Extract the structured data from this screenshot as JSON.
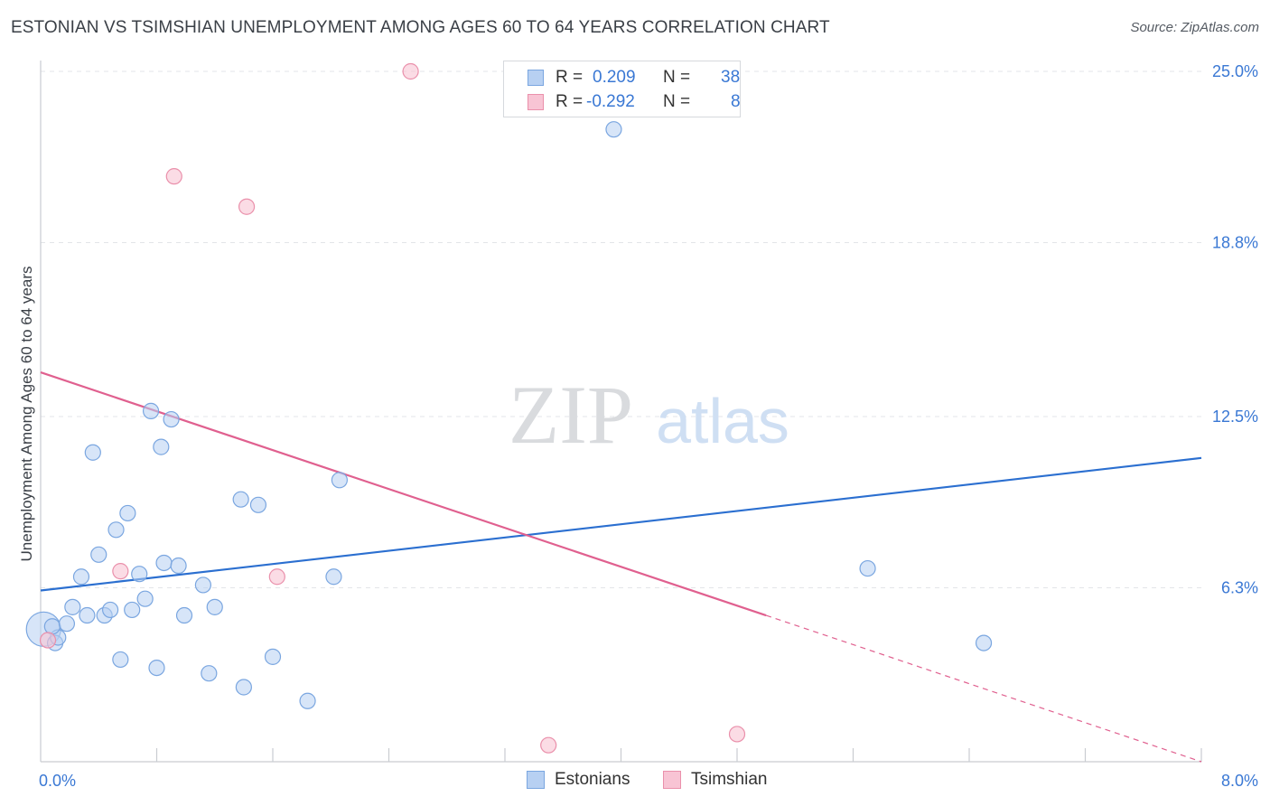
{
  "title": "ESTONIAN VS TSIMSHIAN UNEMPLOYMENT AMONG AGES 60 TO 64 YEARS CORRELATION CHART",
  "source": "Source: ZipAtlas.com",
  "watermark": {
    "zip": "ZIP",
    "atlas": "atlas"
  },
  "colors": {
    "blue_fill": "#b7d0f2",
    "blue_stroke": "#7aa6e0",
    "blue_line": "#2b6fd0",
    "pink_fill": "#f8c4d4",
    "pink_stroke": "#ea90ab",
    "pink_line": "#e0608f",
    "tick_label": "#3a78d4",
    "grid": "#e3e5e8",
    "axis": "#c9ccd1"
  },
  "legend": {
    "rows": [
      {
        "r_label": "R =",
        "r_value": "0.209",
        "n_label": "N =",
        "n_value": "38"
      },
      {
        "r_label": "R =",
        "r_value": "-0.292",
        "n_label": "N =",
        "n_value": "8"
      }
    ]
  },
  "chart_data": {
    "type": "scatter",
    "title": "ESTONIAN VS TSIMSHIAN UNEMPLOYMENT AMONG AGES 60 TO 64 YEARS CORRELATION CHART",
    "xlabel": "",
    "ylabel": "Unemployment Among Ages 60 to 64 years",
    "xlim": [
      0,
      8.0
    ],
    "ylim": [
      0,
      25.0
    ],
    "x_tick_labels": [
      "0.0%",
      "8.0%"
    ],
    "y_ticks": [
      6.3,
      12.5,
      18.8,
      25.0
    ],
    "y_tick_labels": [
      "6.3%",
      "12.5%",
      "18.8%",
      "25.0%"
    ],
    "grid": true,
    "legend_position": "bottom-center",
    "series": [
      {
        "name": "Estonians",
        "r": 0.209,
        "n": 38,
        "trend": {
          "x": [
            0,
            8.0
          ],
          "y": [
            6.2,
            11.0
          ]
        },
        "points": [
          {
            "x": 0.02,
            "y": 4.8,
            "big": true
          },
          {
            "x": 0.1,
            "y": 4.3
          },
          {
            "x": 0.12,
            "y": 4.5
          },
          {
            "x": 0.08,
            "y": 4.9
          },
          {
            "x": 0.18,
            "y": 5.0
          },
          {
            "x": 0.22,
            "y": 5.6
          },
          {
            "x": 0.28,
            "y": 6.7
          },
          {
            "x": 0.32,
            "y": 5.3
          },
          {
            "x": 0.36,
            "y": 11.2
          },
          {
            "x": 0.4,
            "y": 7.5
          },
          {
            "x": 0.44,
            "y": 5.3
          },
          {
            "x": 0.48,
            "y": 5.5
          },
          {
            "x": 0.52,
            "y": 8.4
          },
          {
            "x": 0.55,
            "y": 3.7
          },
          {
            "x": 0.6,
            "y": 9.0
          },
          {
            "x": 0.63,
            "y": 5.5
          },
          {
            "x": 0.68,
            "y": 6.8
          },
          {
            "x": 0.72,
            "y": 5.9
          },
          {
            "x": 0.76,
            "y": 12.7
          },
          {
            "x": 0.8,
            "y": 3.4
          },
          {
            "x": 0.83,
            "y": 11.4
          },
          {
            "x": 0.85,
            "y": 7.2
          },
          {
            "x": 0.9,
            "y": 12.4
          },
          {
            "x": 0.95,
            "y": 7.1
          },
          {
            "x": 0.99,
            "y": 5.3
          },
          {
            "x": 1.12,
            "y": 6.4
          },
          {
            "x": 1.16,
            "y": 3.2
          },
          {
            "x": 1.2,
            "y": 5.6
          },
          {
            "x": 1.38,
            "y": 9.5
          },
          {
            "x": 1.4,
            "y": 2.7
          },
          {
            "x": 1.5,
            "y": 9.3
          },
          {
            "x": 1.6,
            "y": 3.8
          },
          {
            "x": 1.84,
            "y": 2.2
          },
          {
            "x": 2.02,
            "y": 6.7
          },
          {
            "x": 2.06,
            "y": 10.2
          },
          {
            "x": 3.95,
            "y": 22.9
          },
          {
            "x": 5.7,
            "y": 7.0
          },
          {
            "x": 6.5,
            "y": 4.3
          }
        ]
      },
      {
        "name": "Tsimshian",
        "r": -0.292,
        "n": 8,
        "trend": {
          "x": [
            0,
            5.0
          ],
          "y": [
            14.1,
            5.3
          ]
        },
        "trend_dashed": {
          "x": [
            5.0,
            8.0
          ],
          "y": [
            5.3,
            0
          ]
        },
        "points": [
          {
            "x": 0.05,
            "y": 4.4
          },
          {
            "x": 0.55,
            "y": 6.9
          },
          {
            "x": 0.92,
            "y": 21.2
          },
          {
            "x": 1.42,
            "y": 20.1
          },
          {
            "x": 1.63,
            "y": 6.7
          },
          {
            "x": 2.55,
            "y": 25.0
          },
          {
            "x": 3.5,
            "y": 0.6
          },
          {
            "x": 4.8,
            "y": 1.0
          }
        ]
      }
    ]
  }
}
